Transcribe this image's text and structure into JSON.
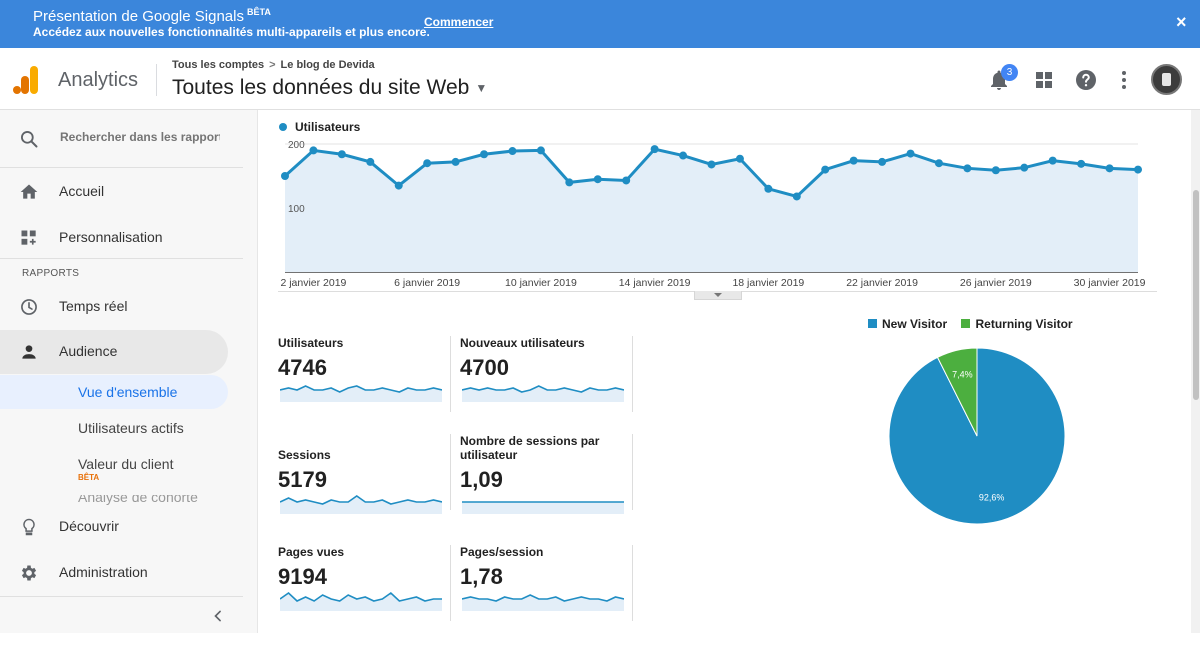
{
  "banner": {
    "title": "Présentation de Google Signals",
    "beta": "BÊTA",
    "subtitle": "Accédez aux nouvelles fonctionnalités multi-appareils et plus encore.",
    "link": "Commencer",
    "close": "×"
  },
  "header": {
    "app_name": "Analytics",
    "breadcrumb": [
      "Tous les comptes",
      "Le blog de Devida"
    ],
    "breadcrumb_sep": ">",
    "view_title": "Toutes les données du site Web",
    "notification_count": "3"
  },
  "sidebar": {
    "search_placeholder": "Rechercher dans les rapports",
    "items": [
      {
        "label": "Accueil",
        "icon": "home-icon"
      },
      {
        "label": "Personnalisation",
        "icon": "dashboard-add-icon"
      }
    ],
    "reports_label": "RAPPORTS",
    "report_items": [
      {
        "label": "Temps réel",
        "icon": "clock-icon"
      },
      {
        "label": "Audience",
        "icon": "person-icon"
      }
    ],
    "audience_sub": [
      {
        "label": "Vue d'ensemble",
        "active": true
      },
      {
        "label": "Utilisateurs actifs"
      },
      {
        "label": "Valeur du client",
        "badge": "BÊTA"
      },
      {
        "label": "Analyse de cohorte"
      }
    ],
    "bottom_items": [
      {
        "label": "Découvrir",
        "icon": "lightbulb-icon"
      },
      {
        "label": "Administration",
        "icon": "gear-icon"
      }
    ]
  },
  "colors": {
    "banner": "#3b86db",
    "series": "#1f8dc3",
    "area": "#e3eef8",
    "new_visitor": "#1f8dc3",
    "returning_visitor": "#4caf3f",
    "accent_blue": "#1a73e8"
  },
  "chart_data": [
    {
      "type": "area",
      "series": [
        {
          "name": "Utilisateurs",
          "values": [
            150,
            190,
            184,
            172,
            135,
            170,
            172,
            184,
            189,
            190,
            140,
            145,
            143,
            192,
            182,
            168,
            177,
            130,
            118,
            160,
            174,
            172,
            185,
            170,
            162,
            159,
            163,
            174,
            169,
            162,
            160
          ]
        }
      ],
      "x": [
        "1 janvier 2019",
        "2 janvier 2019",
        "3 janvier 2019",
        "4 janvier 2019",
        "5 janvier 2019",
        "6 janvier 2019",
        "7 janvier 2019",
        "8 janvier 2019",
        "9 janvier 2019",
        "10 janvier 2019",
        "11 janvier 2019",
        "12 janvier 2019",
        "13 janvier 2019",
        "14 janvier 2019",
        "15 janvier 2019",
        "16 janvier 2019",
        "17 janvier 2019",
        "18 janvier 2019",
        "19 janvier 2019",
        "20 janvier 2019",
        "21 janvier 2019",
        "22 janvier 2019",
        "23 janvier 2019",
        "24 janvier 2019",
        "25 janvier 2019",
        "26 janvier 2019",
        "27 janvier 2019",
        "28 janvier 2019",
        "29 janvier 2019",
        "30 janvier 2019",
        "31 janvier 2019"
      ],
      "x_tick_labels": [
        "2 janvier 2019",
        "6 janvier 2019",
        "10 janvier 2019",
        "14 janvier 2019",
        "18 janvier 2019",
        "22 janvier 2019",
        "26 janvier 2019",
        "30 janvier 2019"
      ],
      "y_ticks": [
        "200",
        "100"
      ],
      "ylim": [
        0,
        200
      ],
      "grid": true,
      "legend": "top-left"
    },
    {
      "type": "pie",
      "categories": [
        "New Visitor",
        "Returning Visitor"
      ],
      "values": [
        92.6,
        7.4
      ],
      "labels": [
        "92,6%",
        "7,4%"
      ],
      "legend": "top"
    }
  ],
  "metrics": [
    {
      "label": "Utilisateurs",
      "value": "4746",
      "spark": [
        12,
        13,
        12,
        14,
        12,
        12,
        13,
        11,
        13,
        14,
        12,
        12,
        13,
        12,
        11,
        13,
        12,
        12,
        13,
        12
      ]
    },
    {
      "label": "Nouveaux utilisateurs",
      "value": "4700",
      "spark": [
        12,
        13,
        12,
        13,
        12,
        12,
        13,
        11,
        12,
        14,
        12,
        12,
        13,
        12,
        11,
        13,
        12,
        12,
        13,
        12
      ]
    },
    {
      "label": "Sessions",
      "value": "5179",
      "spark": [
        12,
        14,
        12,
        13,
        12,
        11,
        13,
        12,
        12,
        15,
        12,
        12,
        13,
        11,
        12,
        13,
        12,
        12,
        13,
        12
      ]
    },
    {
      "label": "Nombre de sessions par utilisateur",
      "value": "1,09",
      "spark": [
        12,
        12,
        12,
        12,
        12,
        12,
        12,
        12,
        12,
        12,
        12,
        12,
        12,
        12,
        12,
        12,
        12,
        12,
        12,
        12
      ]
    },
    {
      "label": "Pages vues",
      "value": "9194",
      "spark": [
        12,
        15,
        11,
        13,
        11,
        14,
        12,
        11,
        14,
        12,
        13,
        11,
        12,
        15,
        11,
        12,
        13,
        11,
        12,
        12
      ]
    },
    {
      "label": "Pages/session",
      "value": "1,78",
      "spark": [
        12,
        13,
        12,
        12,
        11,
        13,
        12,
        12,
        14,
        12,
        12,
        13,
        11,
        12,
        13,
        12,
        12,
        11,
        13,
        12
      ]
    }
  ]
}
